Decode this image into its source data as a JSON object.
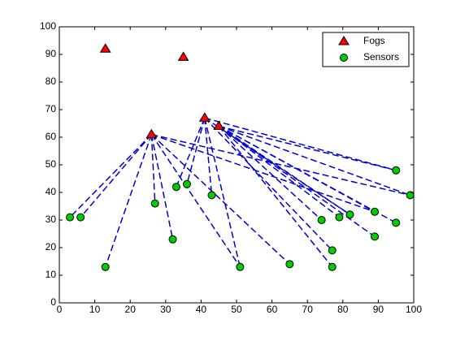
{
  "chart_data": {
    "type": "scatter",
    "xlim": [
      0,
      100
    ],
    "ylim": [
      0,
      100
    ],
    "xticks": [
      0,
      10,
      20,
      30,
      40,
      50,
      60,
      70,
      80,
      90,
      100
    ],
    "yticks": [
      0,
      10,
      20,
      30,
      40,
      50,
      60,
      70,
      80,
      90,
      100
    ],
    "grid": false,
    "legend": "northeast",
    "series": [
      {
        "name": "Fogs",
        "color": "#ff0000",
        "marker": "triangle",
        "x": [
          13,
          35,
          26,
          41,
          45
        ],
        "values": [
          92,
          89,
          61,
          67,
          64
        ]
      },
      {
        "name": "Sensors",
        "color": "#00cc00",
        "marker": "circle",
        "x": [
          3,
          6,
          13,
          27,
          32,
          33,
          36,
          43,
          51,
          65,
          74,
          77,
          77,
          79,
          82,
          89,
          89,
          95,
          95,
          99
        ],
        "values": [
          31,
          31,
          13,
          36,
          23,
          42,
          43,
          39,
          13,
          14,
          30,
          19,
          13,
          31,
          32,
          33,
          24,
          48,
          29,
          39
        ]
      }
    ],
    "link_color": "#0000cc",
    "links": [
      [
        2,
        0
      ],
      [
        2,
        1
      ],
      [
        2,
        2
      ],
      [
        2,
        3
      ],
      [
        2,
        4
      ],
      [
        2,
        8
      ],
      [
        2,
        9
      ],
      [
        2,
        15
      ],
      [
        2,
        19
      ],
      [
        3,
        5
      ],
      [
        3,
        6
      ],
      [
        3,
        7
      ],
      [
        3,
        8
      ],
      [
        3,
        11
      ],
      [
        3,
        17
      ],
      [
        3,
        14
      ],
      [
        4,
        10
      ],
      [
        4,
        12
      ],
      [
        4,
        13
      ],
      [
        4,
        14
      ],
      [
        4,
        16
      ],
      [
        4,
        18
      ],
      [
        4,
        17
      ],
      [
        4,
        19
      ],
      [
        4,
        15
      ]
    ]
  }
}
